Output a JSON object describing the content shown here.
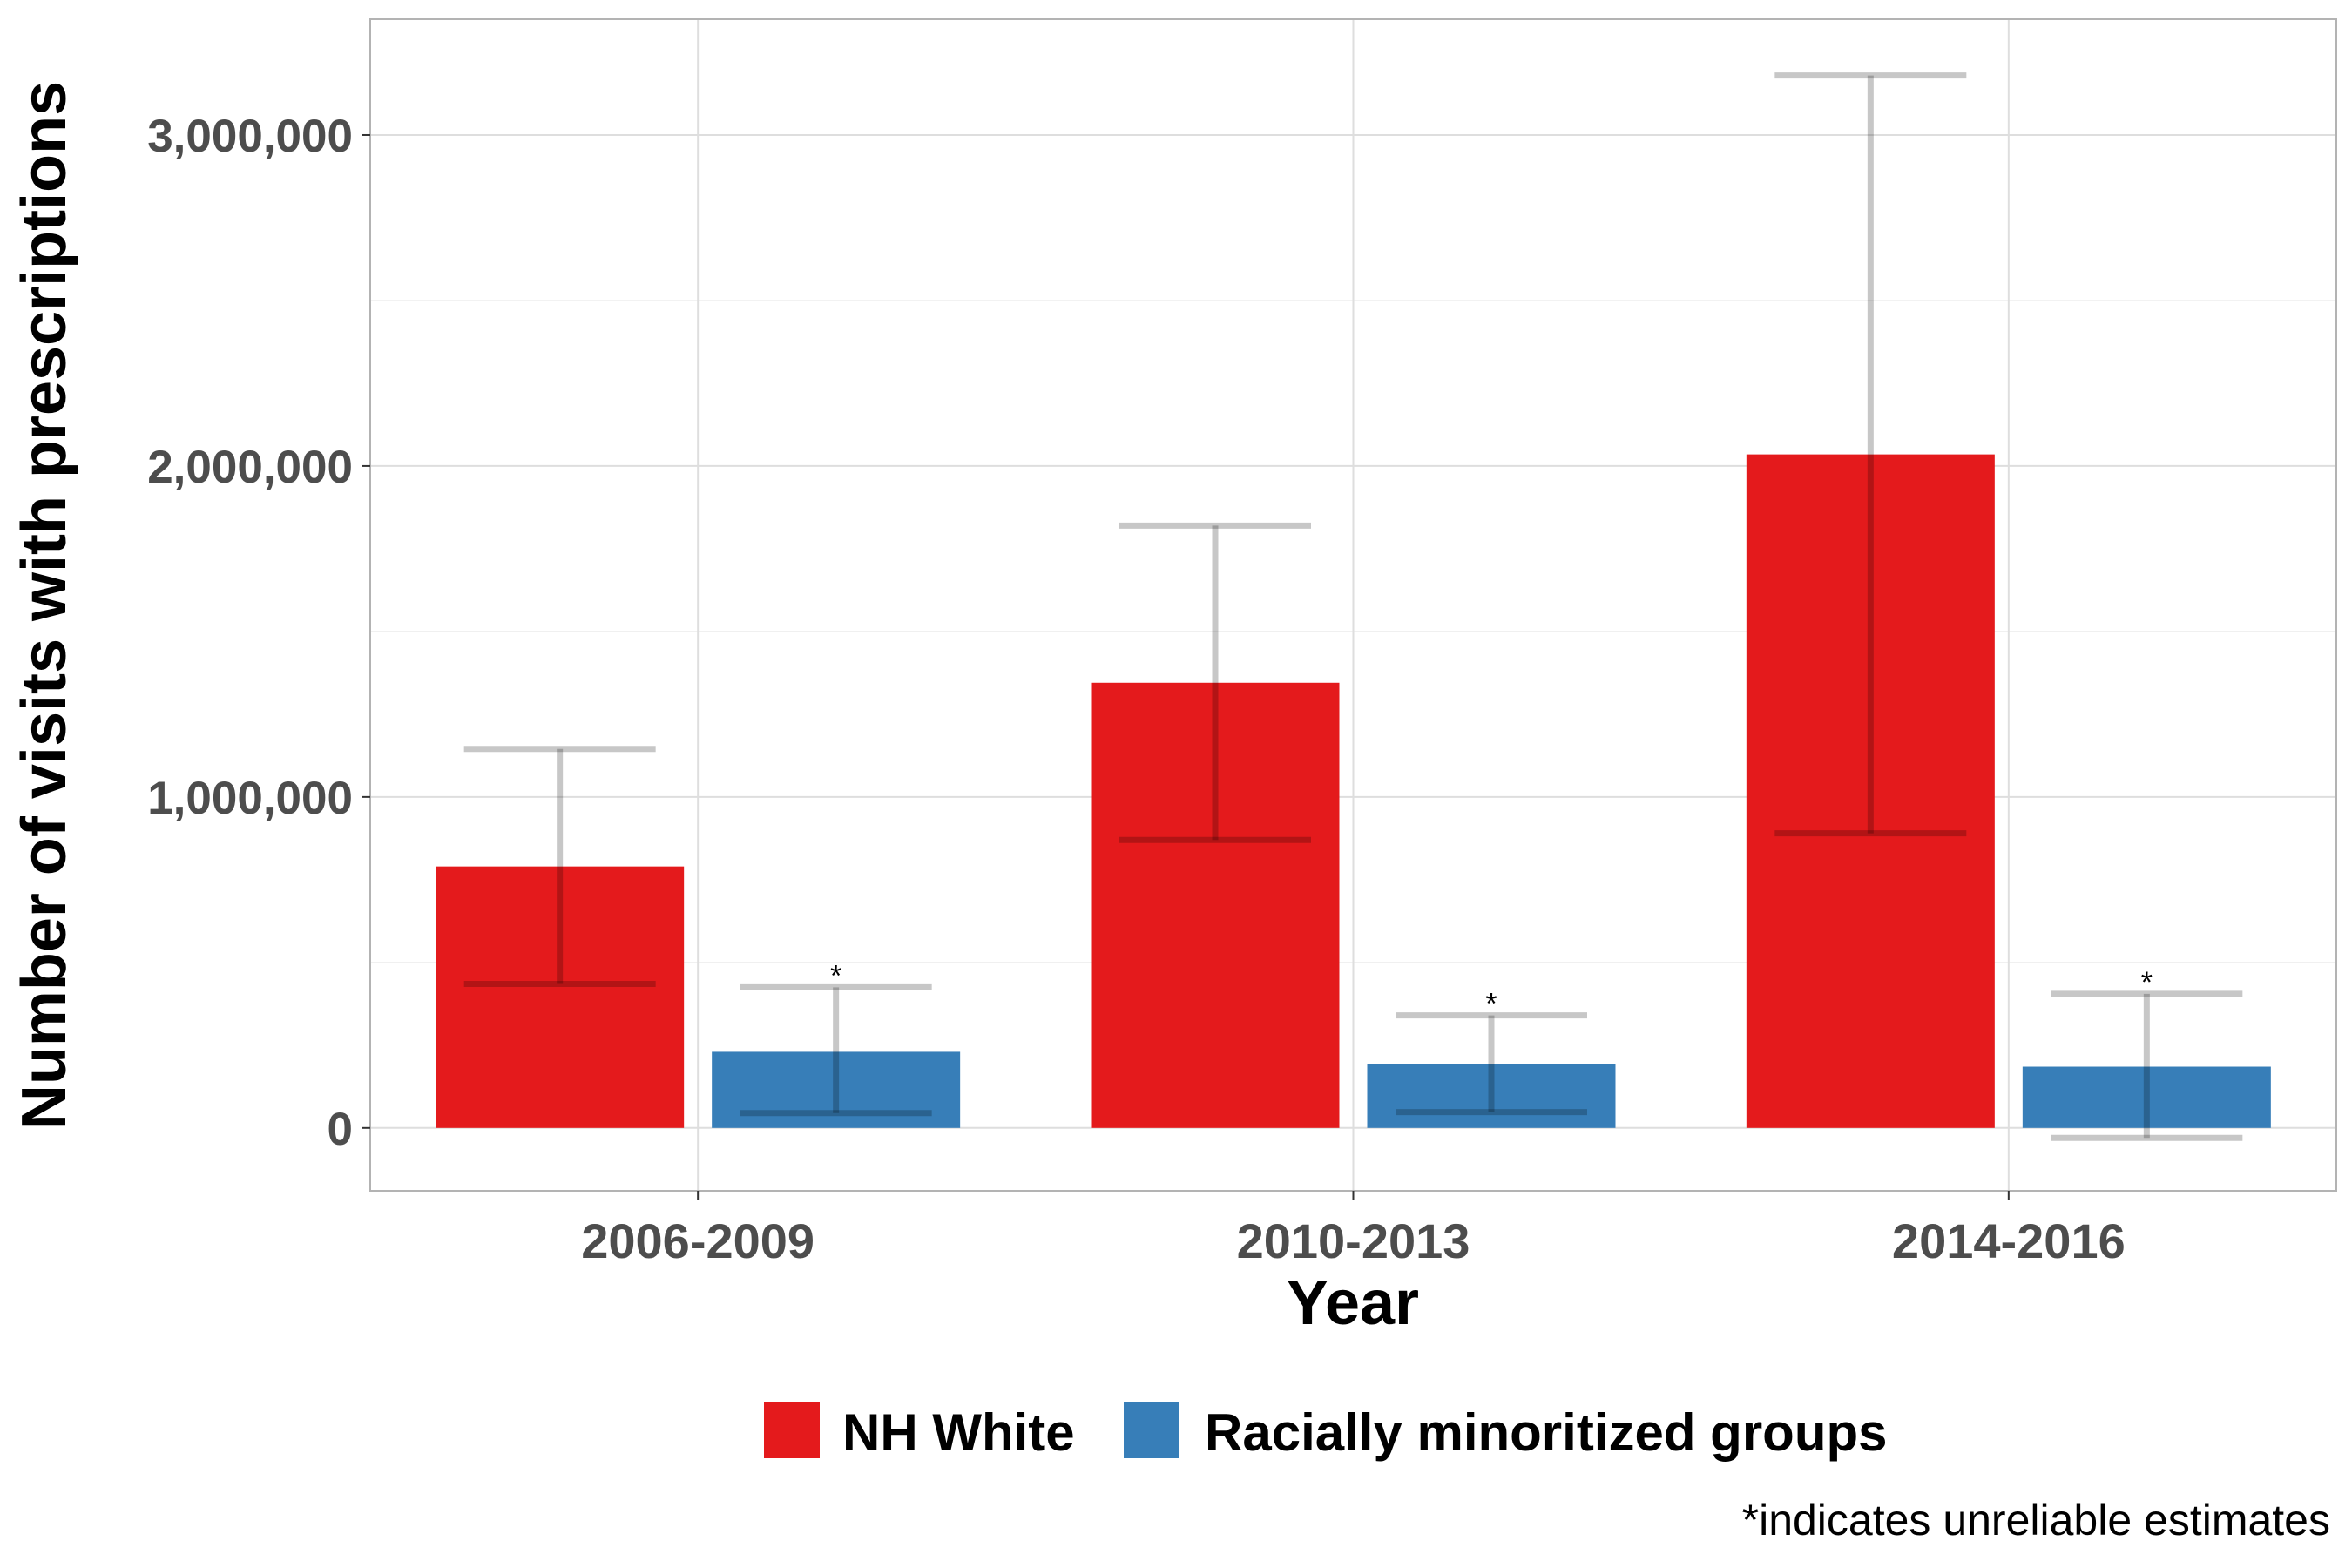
{
  "chart_data": {
    "type": "bar",
    "title": "",
    "xlabel": "Year",
    "ylabel": "Number of visits with prescriptions",
    "categories": [
      "2006-2009",
      "2010-2013",
      "2014-2016"
    ],
    "ylim": [
      -190000,
      3350000
    ],
    "y_ticks": [
      0,
      1000000,
      2000000,
      3000000
    ],
    "y_tick_labels": [
      "0",
      "1,000,000",
      "2,000,000",
      "3,000,000"
    ],
    "grid": true,
    "legend_position": "bottom",
    "series": [
      {
        "name": "NH White",
        "color": "#e41a1c",
        "values": [
          790000,
          1345000,
          2035000
        ],
        "ci_low": [
          435000,
          870000,
          890000
        ],
        "ci_high": [
          1145000,
          1820000,
          3180000
        ],
        "flags": [
          "",
          "",
          ""
        ]
      },
      {
        "name": "Racially minoritized groups",
        "color": "#377eb8",
        "values": [
          230000,
          192000,
          185000
        ],
        "ci_low": [
          45000,
          48000,
          -30000
        ],
        "ci_high": [
          425000,
          340000,
          405000
        ],
        "flags": [
          "*",
          "*",
          "*"
        ]
      }
    ],
    "footnote": "*indicates unreliable estimates"
  }
}
